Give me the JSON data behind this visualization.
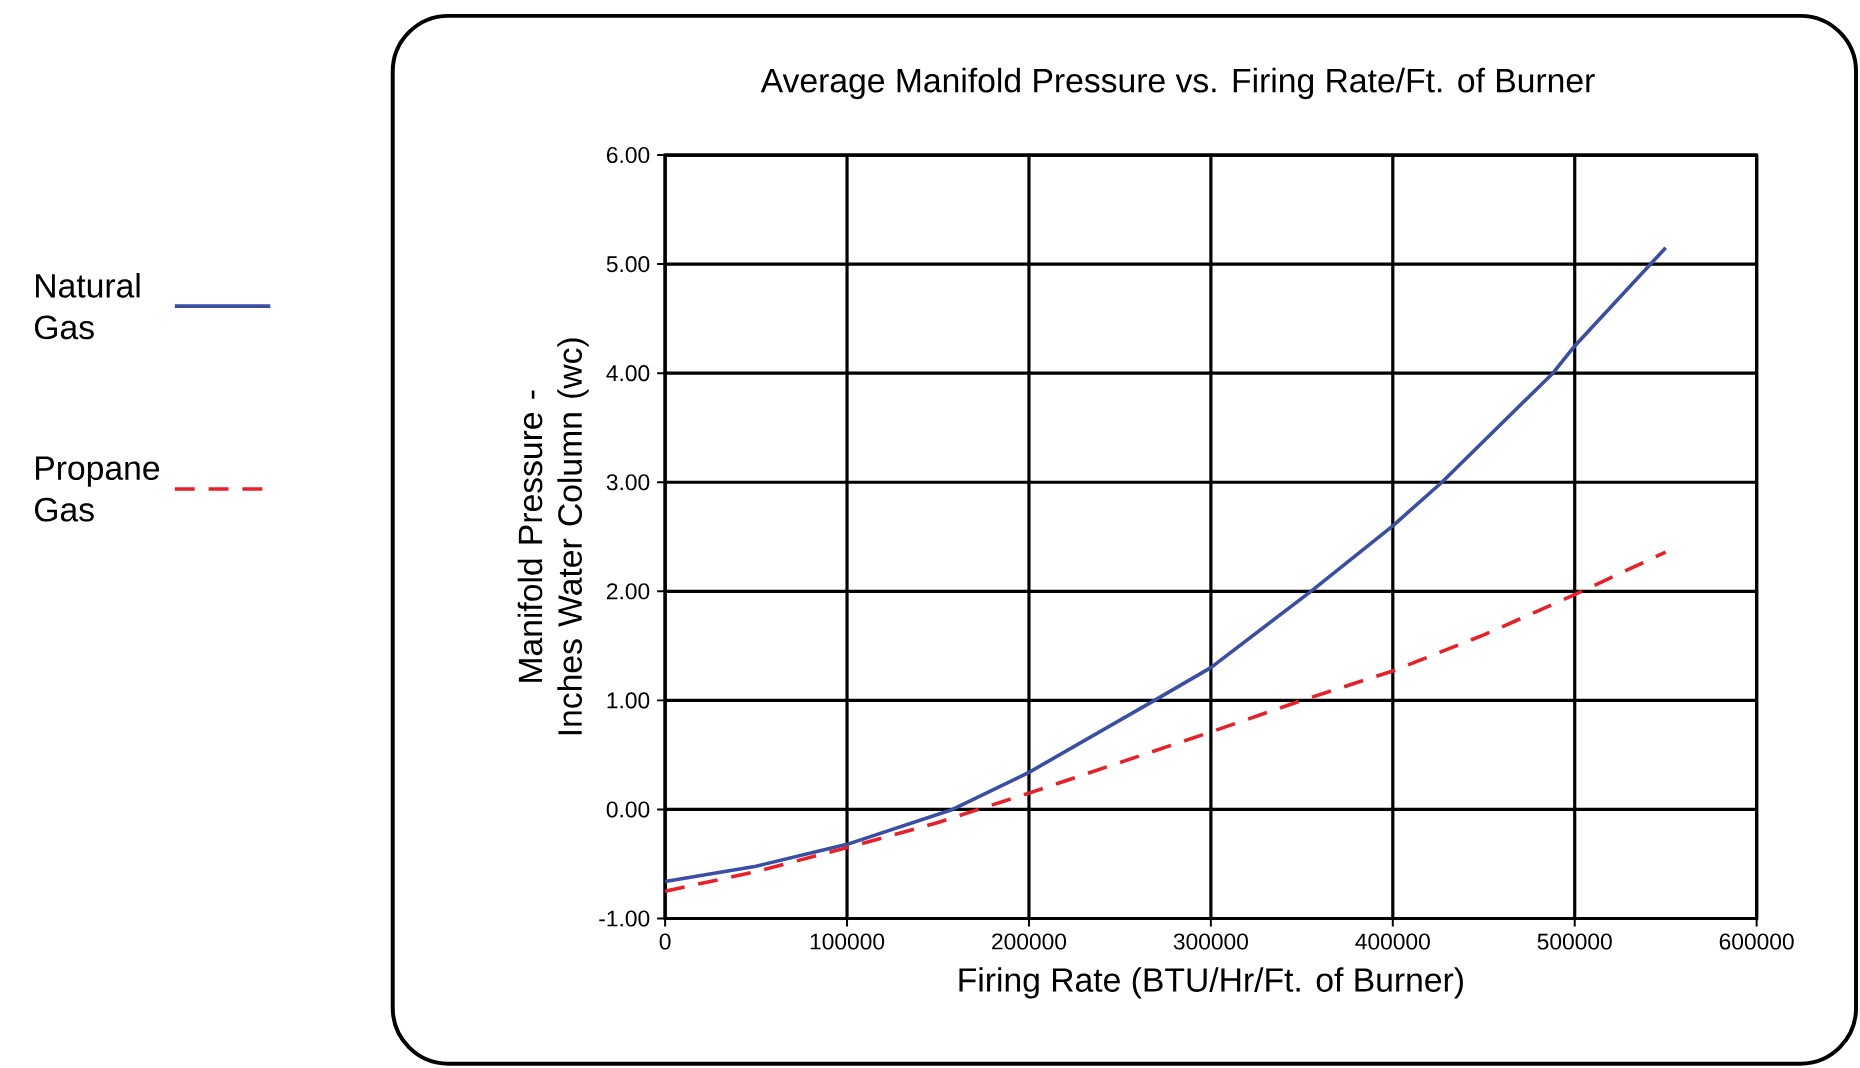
{
  "chart_data": {
    "type": "line",
    "title": "Average Manifold Pressure vs. Firing Rate/Ft. of Burner",
    "xlabel": "Firing Rate (BTU/Hr/Ft. of Burner)",
    "ylabel": "Manifold Pressure - Inches Water Column (wc)",
    "xlim": [
      0,
      600000
    ],
    "ylim": [
      -1,
      6
    ],
    "xticks": [
      0,
      100000,
      200000,
      300000,
      400000,
      500000,
      600000
    ],
    "yticks": [
      {
        "value": -1,
        "label": "-1.00"
      },
      {
        "value": 0,
        "label": "0.00"
      },
      {
        "value": 1,
        "label": "1.00"
      },
      {
        "value": 2,
        "label": "2.00"
      },
      {
        "value": 3,
        "label": "3.00"
      },
      {
        "value": 4,
        "label": "4.00"
      },
      {
        "value": 5,
        "label": "5.00"
      },
      {
        "value": 6,
        "label": "6.00"
      }
    ],
    "grid": true,
    "legend": "left",
    "series": [
      {
        "name": "Natural Gas",
        "color": "#3a4fa3",
        "line_style": "solid",
        "x": [
          0,
          50000,
          100000,
          158000,
          200000,
          269000,
          300000,
          355000,
          400000,
          427000,
          488000,
          500000,
          550000
        ],
        "values": [
          -0.66,
          -0.52,
          -0.32,
          0.0,
          0.34,
          1.0,
          1.3,
          2.0,
          2.6,
          3.0,
          4.0,
          4.25,
          5.15
        ]
      },
      {
        "name": "Propane Gas",
        "color": "#e8202a",
        "line_style": "dashed",
        "x": [
          0,
          50000,
          100000,
          150000,
          200000,
          250000,
          300000,
          350000,
          400000,
          450000,
          500000,
          550000
        ],
        "values": [
          -0.75,
          -0.57,
          -0.35,
          -0.12,
          0.15,
          0.43,
          0.71,
          1.0,
          1.27,
          1.6,
          1.97,
          2.36
        ]
      }
    ]
  }
}
